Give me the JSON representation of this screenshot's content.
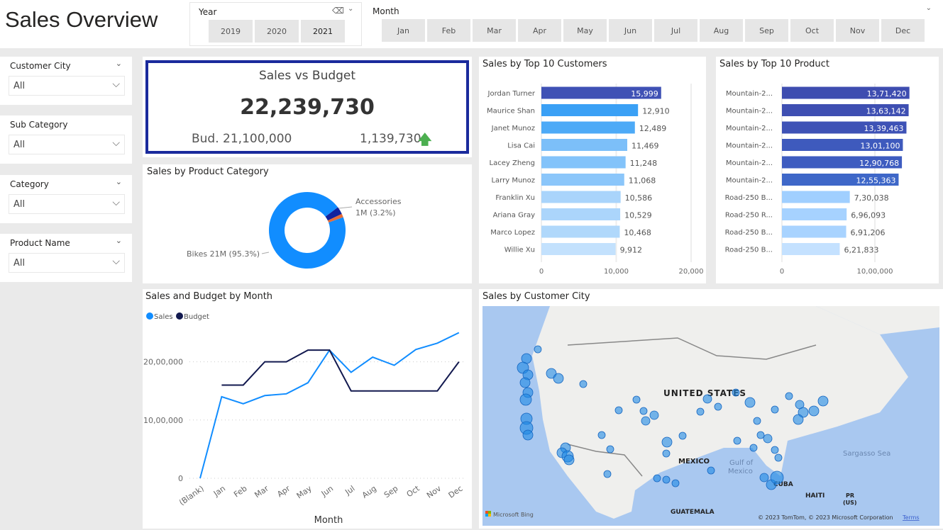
{
  "header": {
    "title": "Sales Overview"
  },
  "year_slicer": {
    "label": "Year",
    "options": [
      "2019",
      "2020",
      "2021"
    ],
    "selected": "2021",
    "eraser_icon": "eraser-icon",
    "chevron_icon": "chevron-down-icon"
  },
  "month_slicer": {
    "label": "Month",
    "options": [
      "Jan",
      "Feb",
      "Mar",
      "Apr",
      "May",
      "Jun",
      "Jul",
      "Aug",
      "Sep",
      "Oct",
      "Nov",
      "Dec"
    ]
  },
  "filters": [
    {
      "label": "Customer City",
      "value": "All"
    },
    {
      "label": "Sub Category",
      "value": "All"
    },
    {
      "label": "Category",
      "value": "All"
    },
    {
      "label": "Product Name",
      "value": "All"
    }
  ],
  "kpi": {
    "title": "Sales vs Budget",
    "value": "22,239,730",
    "budget": "Bud. 21,100,000",
    "variance": "1,139,730",
    "trend": "up",
    "trend_color": "#4caf50",
    "border_color": "#1a2a9c"
  },
  "chart_data": [
    {
      "type": "pie",
      "title": "Sales by Product Category",
      "slices": [
        {
          "label": "Bikes 21M (95.3%)",
          "value": 95.3,
          "color": "#118dff"
        },
        {
          "label": "Accessories\n1M (3.2%)",
          "value": 3.2,
          "color": "#12239e"
        },
        {
          "label": "",
          "value": 1.5,
          "color": "#e66c37"
        }
      ],
      "label_lines": [
        "Bikes 21M (95.3%)",
        "Accessories",
        "1M (3.2%)"
      ]
    },
    {
      "type": "bar",
      "orientation": "horizontal",
      "title": "Sales by Top 10 Customers",
      "categories": [
        "Jordan Turner",
        "Maurice Shan",
        "Janet Munoz",
        "Lisa Cai",
        "Lacey Zheng",
        "Larry Munoz",
        "Franklin Xu",
        "Ariana Gray",
        "Marco Lopez",
        "Willie Xu"
      ],
      "values": [
        15999,
        12910,
        12489,
        11469,
        11248,
        11068,
        10586,
        10529,
        10468,
        9912
      ],
      "value_labels": [
        "15,999",
        "12,910",
        "12,489",
        "11,469",
        "11,248",
        "11,068",
        "10,586",
        "10,529",
        "10,468",
        "9,912"
      ],
      "xlim": [
        0,
        20000
      ],
      "xticks": [
        "0",
        "10,000",
        "20,000"
      ]
    },
    {
      "type": "bar",
      "orientation": "horizontal",
      "title": "Sales by Top 10 Product",
      "categories": [
        "Mountain-2...",
        "Mountain-2...",
        "Mountain-2...",
        "Mountain-2...",
        "Mountain-2...",
        "Mountain-2...",
        "Road-250 B...",
        "Road-250 R...",
        "Road-250 B...",
        "Road-250 B..."
      ],
      "values": [
        1371420,
        1363142,
        1339463,
        1301100,
        1290768,
        1255363,
        730038,
        696093,
        691206,
        621833
      ],
      "value_labels": [
        "13,71,420",
        "13,63,142",
        "13,39,463",
        "13,01,100",
        "12,90,768",
        "12,55,363",
        "7,30,038",
        "6,96,093",
        "6,91,206",
        "6,21,833"
      ],
      "xticks": [
        "0",
        "10,00,000"
      ]
    },
    {
      "type": "line",
      "title": "Sales and Budget by Month",
      "xlabel": "Month",
      "x": [
        "(Blank)",
        "Jan",
        "Feb",
        "Mar",
        "Apr",
        "May",
        "Jun",
        "Jul",
        "Aug",
        "Sep",
        "Oct",
        "Nov",
        "Dec"
      ],
      "series": [
        {
          "name": "Sales",
          "color": "#118dff",
          "values": [
            0,
            1400000,
            1280000,
            1420000,
            1450000,
            1640000,
            2200000,
            1820000,
            2080000,
            1940000,
            2210000,
            2320000,
            2500000
          ]
        },
        {
          "name": "Budget",
          "color": "#12194f",
          "values": [
            null,
            1600000,
            1600000,
            2000000,
            2000000,
            2200000,
            2200000,
            1500000,
            1500000,
            1500000,
            1500000,
            1500000,
            2000000
          ]
        }
      ],
      "yticks": [
        "0",
        "10,00,000",
        "20,00,000"
      ],
      "ylim": [
        0,
        2600000
      ],
      "grid": true,
      "legend": "top-left"
    }
  ],
  "map": {
    "title": "Sales by Customer City",
    "labels": [
      "UNITED STATES",
      "MEXICO",
      "Gulf of",
      "Mexico",
      "CUBA",
      "HAITI",
      "PR",
      "(US)",
      "GUATEMALA",
      "Sargasso Sea"
    ],
    "bing": "Microsoft Bing",
    "copyright": "© 2023 TomTom, © 2023 Microsoft Corporation",
    "terms": "Terms",
    "water_color": "#a9c8f0",
    "bubble_color": "#1e88e5"
  }
}
